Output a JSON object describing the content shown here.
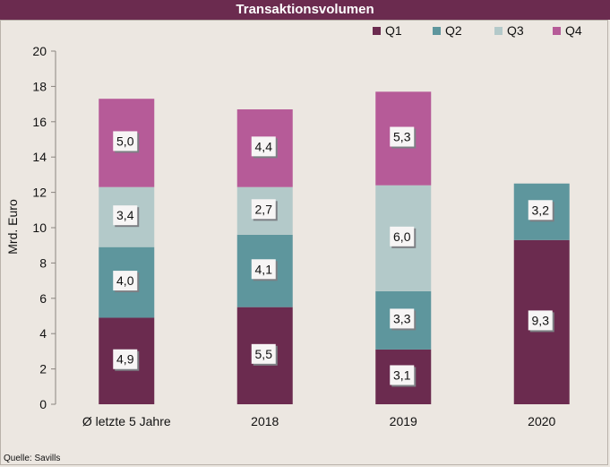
{
  "title": "Transaktionsvolumen",
  "source": "Quelle: Savills",
  "chart_data": {
    "type": "bar",
    "stacked": true,
    "title": "Transaktionsvolumen",
    "xlabel": "",
    "ylabel": "Mrd. Euro",
    "ylim": [
      0,
      20
    ],
    "yticks": [
      0,
      2,
      4,
      6,
      8,
      10,
      12,
      14,
      16,
      18,
      20
    ],
    "grid": false,
    "legend": "top-right",
    "categories": [
      "Ø letzte 5 Jahre",
      "2018",
      "2019",
      "2020"
    ],
    "series": [
      {
        "name": "Q1",
        "color": "#6b2b4f",
        "values": [
          4.9,
          5.5,
          3.1,
          9.3
        ],
        "labels": [
          "4,9",
          "5,5",
          "3,1",
          "9,3"
        ]
      },
      {
        "name": "Q2",
        "color": "#5e969d",
        "values": [
          4.0,
          4.1,
          3.3,
          3.2
        ],
        "labels": [
          "4,0",
          "4,1",
          "3,3",
          "3,2"
        ]
      },
      {
        "name": "Q3",
        "color": "#b3c9c9",
        "values": [
          3.4,
          2.7,
          6.0,
          null
        ],
        "labels": [
          "3,4",
          "2,7",
          "6,0",
          null
        ]
      },
      {
        "name": "Q4",
        "color": "#b65b98",
        "values": [
          5.0,
          4.4,
          5.3,
          null
        ],
        "labels": [
          "5,0",
          "4,4",
          "5,3",
          null
        ]
      }
    ]
  }
}
